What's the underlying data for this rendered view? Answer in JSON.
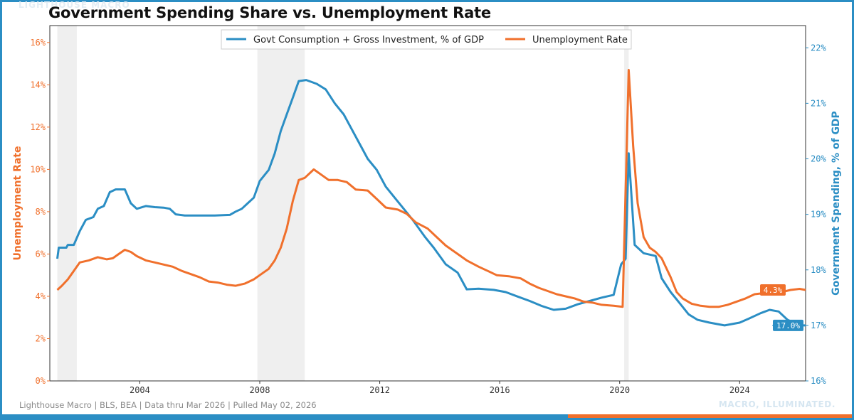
{
  "header": {
    "title": "Government Spending Share vs. Unemployment Rate",
    "watermark_top": "LIGHTHOUSE MACRO"
  },
  "footer": {
    "source": "Lighthouse Macro | BLS, BEA | Data thru Mar 2026 | Pulled May 02, 2026",
    "tagline": "MACRO, ILLUMINATED."
  },
  "colors": {
    "govt": "#2b8ec4",
    "unemp": "#f0702c",
    "recession": "#efefef"
  },
  "chart_data": {
    "type": "line",
    "title": "Government Spending Share vs. Unemployment Rate",
    "x_range": [
      2001.0,
      2026.2
    ],
    "x_ticks": [
      "2004",
      "2008",
      "2012",
      "2016",
      "2020",
      "2024"
    ],
    "y_left": {
      "label": "Unemployment Rate",
      "range": [
        0,
        16.8
      ],
      "ticks": [
        "0%",
        "2%",
        "4%",
        "6%",
        "8%",
        "10%",
        "12%",
        "14%",
        "16%"
      ]
    },
    "y_right": {
      "label": "Government Spending, % of GDP",
      "range": [
        16,
        22.4
      ],
      "ticks": [
        "16%",
        "17%",
        "18%",
        "19%",
        "20%",
        "21%",
        "22%"
      ]
    },
    "legend_position": "top-center",
    "grid": false,
    "recessions": [
      [
        2001.25,
        2001.9
      ],
      [
        2007.92,
        2009.5
      ],
      [
        2020.15,
        2020.3
      ]
    ],
    "series": [
      {
        "name": "Govt Consumption + Gross Investment, % of GDP",
        "axis": "right",
        "color": "#2b8ec4",
        "last_label": "17.0%",
        "points": [
          [
            2001.25,
            18.2
          ],
          [
            2001.3,
            18.4
          ],
          [
            2001.55,
            18.4
          ],
          [
            2001.6,
            18.45
          ],
          [
            2001.8,
            18.45
          ],
          [
            2002.0,
            18.7
          ],
          [
            2002.2,
            18.9
          ],
          [
            2002.45,
            18.95
          ],
          [
            2002.6,
            19.1
          ],
          [
            2002.8,
            19.15
          ],
          [
            2003.0,
            19.4
          ],
          [
            2003.2,
            19.45
          ],
          [
            2003.5,
            19.45
          ],
          [
            2003.7,
            19.2
          ],
          [
            2003.9,
            19.1
          ],
          [
            2004.2,
            19.15
          ],
          [
            2004.5,
            19.13
          ],
          [
            2004.8,
            19.12
          ],
          [
            2005.0,
            19.1
          ],
          [
            2005.2,
            19.0
          ],
          [
            2005.5,
            18.98
          ],
          [
            2006.0,
            18.98
          ],
          [
            2006.5,
            18.98
          ],
          [
            2007.0,
            18.99
          ],
          [
            2007.2,
            19.05
          ],
          [
            2007.4,
            19.1
          ],
          [
            2007.6,
            19.2
          ],
          [
            2007.8,
            19.3
          ],
          [
            2008.0,
            19.6
          ],
          [
            2008.3,
            19.8
          ],
          [
            2008.5,
            20.1
          ],
          [
            2008.7,
            20.5
          ],
          [
            2008.9,
            20.8
          ],
          [
            2009.1,
            21.1
          ],
          [
            2009.3,
            21.4
          ],
          [
            2009.55,
            21.42
          ],
          [
            2009.9,
            21.35
          ],
          [
            2010.2,
            21.25
          ],
          [
            2010.5,
            21.0
          ],
          [
            2010.8,
            20.8
          ],
          [
            2011.0,
            20.6
          ],
          [
            2011.3,
            20.3
          ],
          [
            2011.6,
            20.0
          ],
          [
            2011.9,
            19.8
          ],
          [
            2012.2,
            19.5
          ],
          [
            2012.5,
            19.3
          ],
          [
            2012.8,
            19.1
          ],
          [
            2013.1,
            18.9
          ],
          [
            2013.5,
            18.6
          ],
          [
            2013.8,
            18.4
          ],
          [
            2014.2,
            18.1
          ],
          [
            2014.6,
            17.95
          ],
          [
            2014.9,
            17.65
          ],
          [
            2015.3,
            17.66
          ],
          [
            2015.8,
            17.64
          ],
          [
            2016.2,
            17.6
          ],
          [
            2016.6,
            17.52
          ],
          [
            2017.0,
            17.44
          ],
          [
            2017.4,
            17.35
          ],
          [
            2017.8,
            17.28
          ],
          [
            2018.2,
            17.3
          ],
          [
            2018.6,
            17.38
          ],
          [
            2019.0,
            17.44
          ],
          [
            2019.4,
            17.5
          ],
          [
            2019.8,
            17.55
          ],
          [
            2020.05,
            18.1
          ],
          [
            2020.2,
            18.2
          ],
          [
            2020.3,
            20.1
          ],
          [
            2020.5,
            18.45
          ],
          [
            2020.8,
            18.3
          ],
          [
            2021.2,
            18.25
          ],
          [
            2021.4,
            17.85
          ],
          [
            2021.7,
            17.6
          ],
          [
            2022.0,
            17.4
          ],
          [
            2022.3,
            17.2
          ],
          [
            2022.6,
            17.1
          ],
          [
            2023.0,
            17.05
          ],
          [
            2023.5,
            17.0
          ],
          [
            2024.0,
            17.05
          ],
          [
            2024.3,
            17.12
          ],
          [
            2024.7,
            17.22
          ],
          [
            2025.0,
            17.28
          ],
          [
            2025.3,
            17.25
          ],
          [
            2025.6,
            17.1
          ],
          [
            2026.0,
            17.0
          ],
          [
            2026.2,
            17.0
          ]
        ]
      },
      {
        "name": "Unemployment Rate",
        "axis": "left",
        "color": "#f0702c",
        "last_label": "4.3%",
        "points": [
          [
            2001.25,
            4.3
          ],
          [
            2001.4,
            4.5
          ],
          [
            2001.6,
            4.8
          ],
          [
            2001.8,
            5.2
          ],
          [
            2002.0,
            5.6
          ],
          [
            2002.3,
            5.7
          ],
          [
            2002.6,
            5.85
          ],
          [
            2002.9,
            5.75
          ],
          [
            2003.1,
            5.8
          ],
          [
            2003.3,
            6.0
          ],
          [
            2003.5,
            6.2
          ],
          [
            2003.7,
            6.1
          ],
          [
            2003.9,
            5.9
          ],
          [
            2004.2,
            5.7
          ],
          [
            2004.5,
            5.6
          ],
          [
            2004.8,
            5.5
          ],
          [
            2005.1,
            5.4
          ],
          [
            2005.4,
            5.2
          ],
          [
            2005.7,
            5.05
          ],
          [
            2006.0,
            4.9
          ],
          [
            2006.3,
            4.7
          ],
          [
            2006.6,
            4.65
          ],
          [
            2006.9,
            4.55
          ],
          [
            2007.2,
            4.5
          ],
          [
            2007.5,
            4.6
          ],
          [
            2007.8,
            4.8
          ],
          [
            2008.0,
            5.0
          ],
          [
            2008.3,
            5.3
          ],
          [
            2008.5,
            5.7
          ],
          [
            2008.7,
            6.3
          ],
          [
            2008.9,
            7.2
          ],
          [
            2009.1,
            8.5
          ],
          [
            2009.3,
            9.5
          ],
          [
            2009.5,
            9.6
          ],
          [
            2009.8,
            10.0
          ],
          [
            2010.0,
            9.8
          ],
          [
            2010.3,
            9.5
          ],
          [
            2010.6,
            9.5
          ],
          [
            2010.9,
            9.4
          ],
          [
            2011.2,
            9.05
          ],
          [
            2011.6,
            9.0
          ],
          [
            2011.9,
            8.6
          ],
          [
            2012.2,
            8.2
          ],
          [
            2012.6,
            8.1
          ],
          [
            2012.9,
            7.9
          ],
          [
            2013.2,
            7.5
          ],
          [
            2013.6,
            7.2
          ],
          [
            2013.9,
            6.8
          ],
          [
            2014.2,
            6.4
          ],
          [
            2014.6,
            6.0
          ],
          [
            2014.9,
            5.7
          ],
          [
            2015.3,
            5.4
          ],
          [
            2015.6,
            5.2
          ],
          [
            2015.9,
            5.0
          ],
          [
            2016.3,
            4.95
          ],
          [
            2016.7,
            4.85
          ],
          [
            2017.0,
            4.6
          ],
          [
            2017.3,
            4.4
          ],
          [
            2017.6,
            4.25
          ],
          [
            2017.9,
            4.1
          ],
          [
            2018.2,
            4.0
          ],
          [
            2018.5,
            3.9
          ],
          [
            2018.8,
            3.75
          ],
          [
            2019.1,
            3.7
          ],
          [
            2019.4,
            3.6
          ],
          [
            2019.8,
            3.55
          ],
          [
            2020.1,
            3.5
          ],
          [
            2020.3,
            14.7
          ],
          [
            2020.45,
            11.1
          ],
          [
            2020.6,
            8.4
          ],
          [
            2020.8,
            6.8
          ],
          [
            2021.0,
            6.3
          ],
          [
            2021.2,
            6.1
          ],
          [
            2021.4,
            5.8
          ],
          [
            2021.7,
            4.9
          ],
          [
            2021.9,
            4.2
          ],
          [
            2022.1,
            3.9
          ],
          [
            2022.4,
            3.65
          ],
          [
            2022.7,
            3.55
          ],
          [
            2023.0,
            3.5
          ],
          [
            2023.3,
            3.5
          ],
          [
            2023.6,
            3.6
          ],
          [
            2023.9,
            3.75
          ],
          [
            2024.2,
            3.9
          ],
          [
            2024.5,
            4.1
          ],
          [
            2024.8,
            4.15
          ],
          [
            2025.1,
            4.1
          ],
          [
            2025.4,
            4.2
          ],
          [
            2025.7,
            4.3
          ],
          [
            2026.0,
            4.35
          ],
          [
            2026.2,
            4.3
          ]
        ]
      }
    ]
  }
}
